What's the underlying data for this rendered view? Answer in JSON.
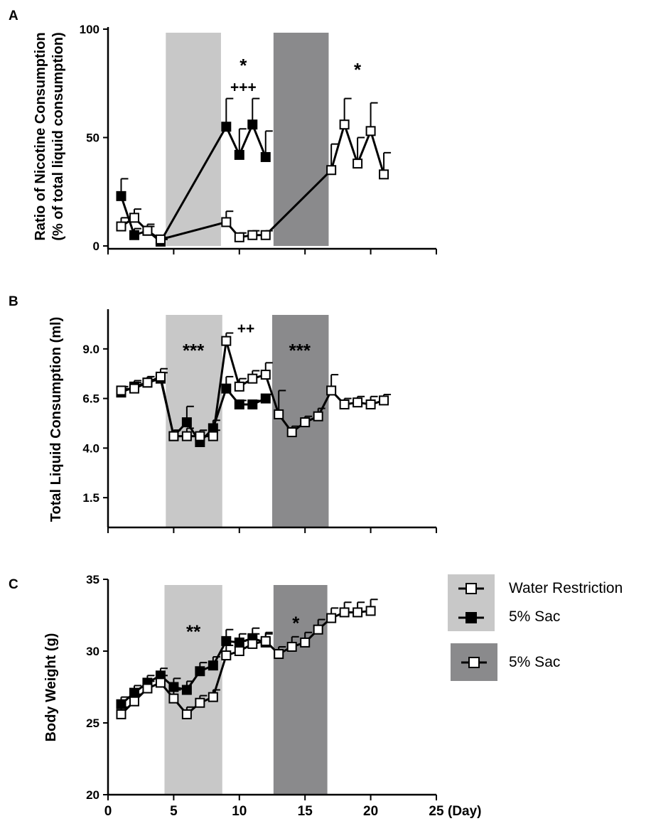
{
  "shading_colors": {
    "light": "#c8c8c8",
    "dark": "#8a8a8c"
  },
  "x_axis": {
    "ticks": [
      0,
      5,
      10,
      15,
      20,
      25
    ],
    "tick_labels": [
      "0",
      "5",
      "10",
      "15",
      "20",
      "25"
    ],
    "unit_label": "(Day)",
    "range": [
      0,
      25
    ]
  },
  "legend": {
    "light_entries": [
      {
        "label": "Water Restriction",
        "marker": "open-square"
      },
      {
        "label": "5% Sac",
        "marker": "filled-square"
      }
    ],
    "dark_entries": [
      {
        "label": "5% Sac",
        "marker": "open-square"
      }
    ]
  },
  "chart_data": [
    {
      "type": "line",
      "panel": "A",
      "ylabel_line1": "Ratio of Nicotine Consumption",
      "ylabel_line2": "(% of total liquid consumption)",
      "ylim": [
        0,
        100
      ],
      "yticks": [
        0,
        50,
        100
      ],
      "ytick_labels": [
        "0",
        "50",
        "100"
      ],
      "shaded_regions": [
        {
          "shade": "light",
          "from": 4.4,
          "to": 8.6
        },
        {
          "shade": "dark",
          "from": 12.6,
          "to": 16.8
        }
      ],
      "series": [
        {
          "marker": "filled-square",
          "x": [
            1,
            2,
            3,
            4,
            9,
            10,
            11,
            12
          ],
          "y": [
            23,
            5,
            7,
            2,
            55,
            42,
            56,
            41
          ],
          "err": [
            8,
            3,
            2,
            1,
            13,
            12,
            12,
            12
          ]
        },
        {
          "marker": "open-square",
          "x": [
            1,
            2,
            3,
            4,
            9,
            10,
            11,
            12,
            17,
            18,
            19,
            20,
            21
          ],
          "y": [
            9,
            13,
            7,
            3,
            11,
            4,
            5,
            5,
            35,
            56,
            38,
            53,
            33
          ],
          "err": [
            4,
            4,
            3,
            1,
            5,
            2,
            2,
            2,
            12,
            12,
            12,
            13,
            10
          ]
        }
      ],
      "annotations": [
        {
          "text": "*",
          "x": 10.3,
          "y": 85,
          "kind": "star"
        },
        {
          "text": "+++",
          "x": 10.3,
          "y": 73,
          "kind": "plus"
        },
        {
          "text": "*",
          "x": 19,
          "y": 83,
          "kind": "star"
        }
      ]
    },
    {
      "type": "line",
      "panel": "B",
      "ylabel_line1": "Total Liquid Consumption (ml)",
      "ylim": [
        0,
        11
      ],
      "yticks": [
        1.5,
        4.0,
        6.5,
        9.0
      ],
      "ytick_labels": [
        "1.5",
        "4.0",
        "6.5",
        "9.0"
      ],
      "shaded_regions": [
        {
          "shade": "light",
          "from": 4.4,
          "to": 8.7
        },
        {
          "shade": "dark",
          "from": 12.5,
          "to": 16.8
        }
      ],
      "series": [
        {
          "marker": "filled-square",
          "x": [
            1,
            2,
            3,
            4,
            5,
            6,
            7,
            8,
            9,
            10,
            11,
            12
          ],
          "y": [
            6.8,
            7.1,
            7.3,
            7.5,
            4.6,
            5.3,
            4.3,
            5.0,
            7.0,
            6.2,
            6.2,
            6.5
          ],
          "err": [
            0.2,
            0.3,
            0.3,
            0.3,
            0.3,
            0.8,
            0.3,
            0.4,
            0.6,
            0.2,
            0.2,
            0.2
          ]
        },
        {
          "marker": "open-square",
          "x": [
            1,
            2,
            3,
            4,
            5,
            6,
            7,
            8,
            9,
            10,
            11,
            12,
            13,
            14,
            15,
            16,
            17,
            18,
            19,
            20,
            21
          ],
          "y": [
            6.9,
            7.0,
            7.3,
            7.6,
            4.6,
            4.6,
            4.6,
            4.6,
            9.4,
            7.1,
            7.5,
            7.7,
            5.7,
            4.8,
            5.3,
            5.6,
            6.9,
            6.2,
            6.3,
            6.2,
            6.4
          ],
          "err": [
            0.2,
            0.3,
            0.3,
            0.4,
            0.3,
            0.4,
            0.3,
            0.3,
            0.4,
            0.4,
            0.4,
            0.6,
            1.2,
            0.3,
            0.3,
            0.4,
            0.8,
            0.3,
            0.3,
            0.4,
            0.3
          ]
        }
      ],
      "annotations": [
        {
          "text": "***",
          "x": 6.5,
          "y": 9.1,
          "kind": "star"
        },
        {
          "text": "++",
          "x": 10.5,
          "y": 10.0,
          "kind": "plus"
        },
        {
          "text": "***",
          "x": 14.6,
          "y": 9.1,
          "kind": "star"
        }
      ]
    },
    {
      "type": "line",
      "panel": "C",
      "ylabel_line1": "Body Weight (g)",
      "ylim": [
        20,
        35
      ],
      "yticks": [
        20,
        25,
        30,
        35
      ],
      "ytick_labels": [
        "20",
        "25",
        "30",
        "35"
      ],
      "shaded_regions": [
        {
          "shade": "light",
          "from": 4.3,
          "to": 8.7
        },
        {
          "shade": "dark",
          "from": 12.6,
          "to": 16.7
        }
      ],
      "series": [
        {
          "marker": "filled-square",
          "x": [
            1,
            2,
            3,
            4,
            5,
            6,
            7,
            8,
            9,
            10,
            11,
            12
          ],
          "y": [
            26.3,
            27.1,
            27.8,
            28.3,
            27.5,
            27.3,
            28.6,
            29.0,
            30.7,
            30.6,
            30.9,
            30.6
          ],
          "err": [
            0.5,
            0.5,
            0.5,
            0.5,
            0.6,
            0.6,
            0.6,
            0.6,
            0.8,
            0.6,
            0.7,
            0.6
          ]
        },
        {
          "marker": "open-square",
          "x": [
            1,
            2,
            3,
            4,
            5,
            6,
            7,
            8,
            9,
            10,
            11,
            12,
            13,
            14,
            15,
            16,
            17,
            18,
            19,
            20
          ],
          "y": [
            25.6,
            26.5,
            27.4,
            27.8,
            26.7,
            25.6,
            26.4,
            26.8,
            29.7,
            30.0,
            30.5,
            30.7,
            29.8,
            30.3,
            30.6,
            31.5,
            32.3,
            32.7,
            32.7,
            32.8
          ],
          "err": [
            0.5,
            0.5,
            0.5,
            0.5,
            0.6,
            0.5,
            0.5,
            0.5,
            0.7,
            0.7,
            0.7,
            0.6,
            0.5,
            0.7,
            0.7,
            0.7,
            0.7,
            0.7,
            0.7,
            0.8
          ]
        }
      ],
      "annotations": [
        {
          "text": "**",
          "x": 6.5,
          "y": 31.6,
          "kind": "star"
        },
        {
          "text": "*",
          "x": 14.3,
          "y": 32.2,
          "kind": "star"
        }
      ]
    }
  ]
}
